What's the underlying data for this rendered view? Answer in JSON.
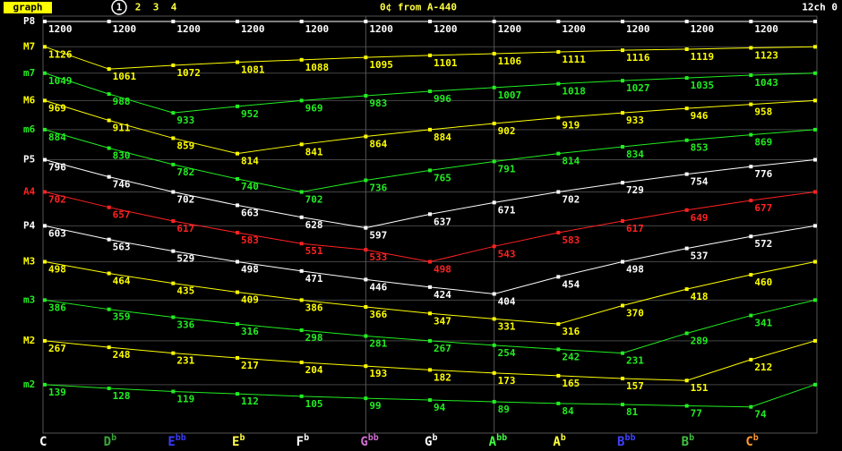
{
  "header": {
    "button": "graph",
    "tabs": [
      "1",
      "2",
      "3",
      "4"
    ],
    "status": "0¢ from A-440",
    "channel": "12ch 0"
  },
  "chart_data": {
    "type": "line",
    "categories": [
      "C",
      "Db",
      "Ebb",
      "Eb",
      "Fb",
      "Gbb",
      "Gb",
      "Abb",
      "Ab",
      "Bbb",
      "Bb",
      "Cb",
      null
    ],
    "category_colors": [
      "#ffffff",
      "#3aa83a",
      "#3a3aff",
      "#ffff40",
      "#ffffff",
      "#d070d0",
      "#ffffff",
      "#40ff40",
      "#ffff40",
      "#4040ff",
      "#40c040",
      "#ff9a30",
      "#ffffff"
    ],
    "ylim": [
      0,
      1200
    ],
    "yticks": [
      {
        "value": 1200,
        "label": "P8"
      },
      {
        "value": 1126,
        "label": "M7"
      },
      {
        "value": 1049,
        "label": "m7"
      },
      {
        "value": 969,
        "label": "M6"
      },
      {
        "value": 884,
        "label": "m6"
      },
      {
        "value": 796,
        "label": "P5"
      },
      {
        "value": 702,
        "label": "A4"
      },
      {
        "value": 603,
        "label": "P4"
      },
      {
        "value": 498,
        "label": "M3"
      },
      {
        "value": 386,
        "label": "m3"
      },
      {
        "value": 267,
        "label": "M2"
      },
      {
        "value": 139,
        "label": "m2"
      }
    ],
    "grid": true,
    "vgrid_categories": [
      5,
      7
    ],
    "series": [
      {
        "color": "#ffffff",
        "values": [
          1200,
          1200,
          1200,
          1200,
          1200,
          1200,
          1200,
          1200,
          1200,
          1200,
          1200,
          1200,
          1200
        ]
      },
      {
        "color": "#ffff00",
        "values": [
          1126,
          1061,
          1072,
          1081,
          1088,
          1095,
          1101,
          1106,
          1111,
          1116,
          1119,
          1123,
          1126
        ]
      },
      {
        "color": "#22ee22",
        "values": [
          1049,
          988,
          933,
          952,
          969,
          983,
          996,
          1007,
          1018,
          1027,
          1035,
          1043,
          1049
        ]
      },
      {
        "color": "#ffff00",
        "values": [
          969,
          911,
          859,
          814,
          841,
          864,
          884,
          902,
          919,
          933,
          946,
          958,
          969
        ]
      },
      {
        "color": "#22ee22",
        "values": [
          884,
          830,
          782,
          740,
          702,
          736,
          765,
          791,
          814,
          834,
          853,
          869,
          884
        ]
      },
      {
        "color": "#ffffff",
        "values": [
          796,
          746,
          702,
          663,
          628,
          597,
          637,
          671,
          702,
          729,
          754,
          776,
          796
        ]
      },
      {
        "color": "#ff2222",
        "values": [
          702,
          657,
          617,
          583,
          551,
          533,
          498,
          543,
          583,
          617,
          649,
          677,
          702
        ]
      },
      {
        "color": "#ffffff",
        "values": [
          603,
          563,
          529,
          498,
          471,
          446,
          424,
          404,
          454,
          498,
          537,
          572,
          603
        ]
      },
      {
        "color": "#ffff00",
        "values": [
          498,
          464,
          435,
          409,
          386,
          366,
          347,
          331,
          316,
          370,
          418,
          460,
          498
        ]
      },
      {
        "color": "#22ee22",
        "values": [
          386,
          359,
          336,
          316,
          298,
          281,
          267,
          254,
          242,
          231,
          289,
          341,
          386
        ]
      },
      {
        "color": "#ffff00",
        "values": [
          267,
          248,
          231,
          217,
          204,
          193,
          182,
          173,
          165,
          157,
          151,
          212,
          267
        ]
      },
      {
        "color": "#22ee22",
        "values": [
          139,
          128,
          119,
          112,
          105,
          99,
          94,
          89,
          84,
          81,
          77,
          74,
          139
        ]
      }
    ]
  }
}
